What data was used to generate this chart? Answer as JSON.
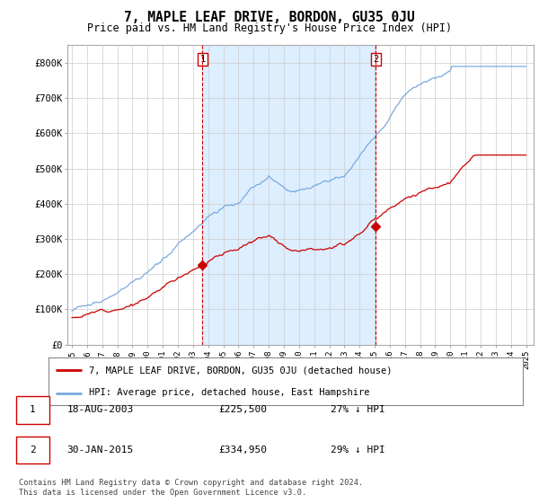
{
  "title": "7, MAPLE LEAF DRIVE, BORDON, GU35 0JU",
  "subtitle": "Price paid vs. HM Land Registry's House Price Index (HPI)",
  "title_fontsize": 10.5,
  "subtitle_fontsize": 8.5,
  "hpi_color": "#7aaadd",
  "price_color": "#cc0000",
  "shade_color": "#ddeeff",
  "background_color": "#ffffff",
  "grid_color": "#cccccc",
  "ylim": [
    0,
    850000
  ],
  "yticks": [
    0,
    100000,
    200000,
    300000,
    400000,
    500000,
    600000,
    700000,
    800000
  ],
  "ytick_labels": [
    "£0",
    "£100K",
    "£200K",
    "£300K",
    "£400K",
    "£500K",
    "£600K",
    "£700K",
    "£800K"
  ],
  "legend_label_red": "7, MAPLE LEAF DRIVE, BORDON, GU35 0JU (detached house)",
  "legend_label_blue": "HPI: Average price, detached house, East Hampshire",
  "purchase1_date": "18-AUG-2003",
  "purchase1_price": "£225,500",
  "purchase1_pct": "27% ↓ HPI",
  "purchase1_x": 2003.63,
  "purchase1_y": 225500,
  "purchase2_date": "30-JAN-2015",
  "purchase2_price": "£334,950",
  "purchase2_pct": "29% ↓ HPI",
  "purchase2_x": 2015.08,
  "purchase2_y": 334950,
  "footer": "Contains HM Land Registry data © Crown copyright and database right 2024.\nThis data is licensed under the Open Government Licence v3.0.",
  "xlim_left": 1994.7,
  "xlim_right": 2025.5
}
